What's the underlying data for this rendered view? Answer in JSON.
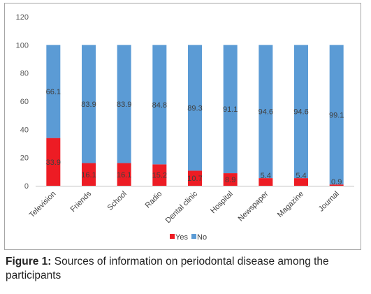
{
  "chart_data": {
    "type": "bar",
    "stacked": true,
    "categories": [
      "Television",
      "Friends",
      "School",
      "Radio",
      "Dental clinic",
      "Hospital",
      "Newspaper",
      "Magazine",
      "Journal"
    ],
    "series": [
      {
        "name": "Yes",
        "color": "#ed1c24",
        "values": [
          33.9,
          16.1,
          16.1,
          15.2,
          10.7,
          8.9,
          5.4,
          5.4,
          0.9
        ]
      },
      {
        "name": "No",
        "color": "#5b9bd5",
        "values": [
          66.1,
          83.9,
          83.9,
          84.8,
          89.3,
          91.1,
          94.6,
          94.6,
          99.1
        ]
      }
    ],
    "ylim": [
      0,
      120
    ],
    "yticks": [
      0,
      20,
      40,
      60,
      80,
      100,
      120
    ],
    "grid": false,
    "legend_position": "bottom",
    "data_labels": true
  },
  "caption": {
    "label": "Figure 1:",
    "text": " Sources of information on periodontal disease among the participants"
  }
}
